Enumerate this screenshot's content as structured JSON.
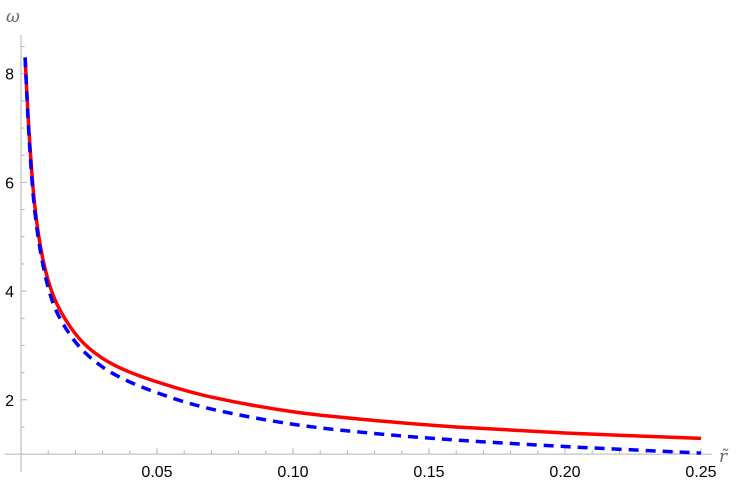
{
  "chart_data": {
    "type": "line",
    "title": "",
    "xlabel": "r̃",
    "ylabel": "ω",
    "xlim": [
      0,
      0.25
    ],
    "ylim": [
      1,
      8.6
    ],
    "x_axis_crosses_y_at": 1,
    "grid": false,
    "legend": null,
    "x_ticks": [
      0.05,
      0.1,
      0.15,
      0.2,
      0.25
    ],
    "x_tick_labels": [
      "0.05",
      "0.10",
      "0.15",
      "0.20",
      "0.25"
    ],
    "y_ticks": [
      2,
      4,
      6,
      8
    ],
    "y_tick_labels": [
      "2",
      "4",
      "6",
      "8"
    ],
    "series": [
      {
        "name": "solid",
        "color": "#ff0000",
        "style": "solid",
        "x": [
          0.0015,
          0.003,
          0.005,
          0.008,
          0.012,
          0.018,
          0.025,
          0.035,
          0.05,
          0.07,
          0.1,
          0.13,
          0.16,
          0.2,
          0.25
        ],
        "y": [
          8.3,
          6.9,
          5.6,
          4.6,
          3.9,
          3.35,
          2.95,
          2.62,
          2.33,
          2.05,
          1.78,
          1.62,
          1.5,
          1.39,
          1.29
        ]
      },
      {
        "name": "dashed",
        "color": "#0000ff",
        "style": "dashed",
        "x": [
          0.0015,
          0.003,
          0.005,
          0.008,
          0.012,
          0.018,
          0.025,
          0.035,
          0.05,
          0.07,
          0.1,
          0.13,
          0.16,
          0.2,
          0.25
        ],
        "y": [
          8.3,
          6.8,
          5.5,
          4.5,
          3.75,
          3.2,
          2.8,
          2.45,
          2.13,
          1.83,
          1.55,
          1.38,
          1.26,
          1.14,
          1.02
        ]
      }
    ]
  },
  "axes": {
    "x_label": "r̃",
    "y_label": "ω"
  }
}
